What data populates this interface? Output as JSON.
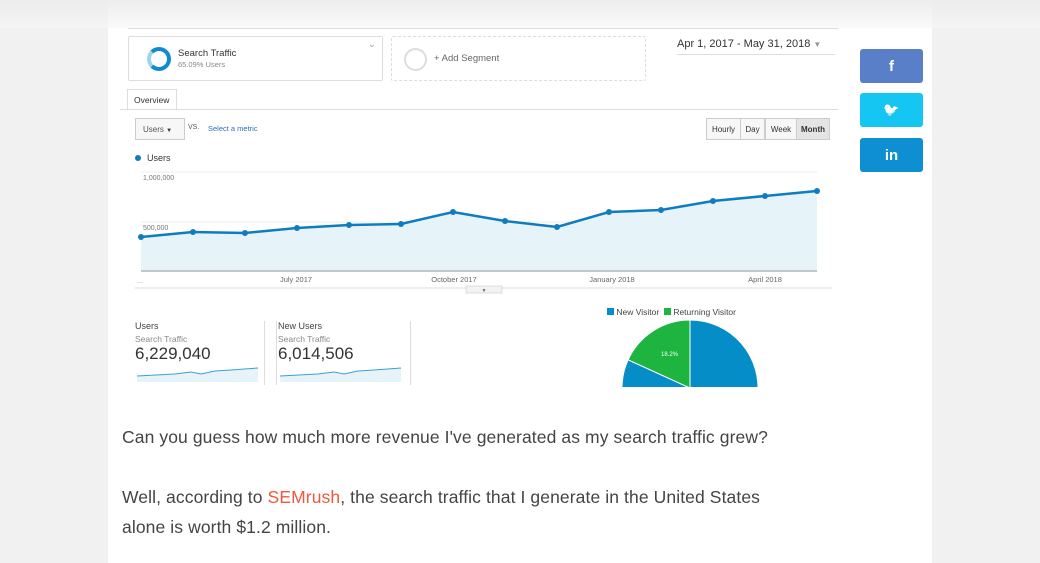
{
  "segments": {
    "active_name": "Search Traffic",
    "active_sub": "65.09% Users",
    "add_label": "+ Add Segment"
  },
  "date_range": "Apr 1, 2017 - May 31, 2018",
  "tab": "Overview",
  "metric_select": "Users",
  "vs": "VS.",
  "select_metric": "Select a metric",
  "granularity": [
    "Hourly",
    "Day",
    "Week",
    "Month"
  ],
  "legend_label": "Users",
  "chart_data": {
    "type": "area",
    "series": [
      {
        "name": "Users",
        "values": [
          350000,
          400000,
          390000,
          440000,
          470000,
          480000,
          600000,
          510000,
          450000,
          600000,
          620000,
          710000,
          760000,
          810000
        ]
      }
    ],
    "yticks": [
      "1,000,000",
      "500,000"
    ],
    "xticks": [
      "July 2017",
      "October 2017",
      "January 2018",
      "April 2018"
    ],
    "ylim": [
      0,
      1000000
    ],
    "x_first_label": "..."
  },
  "scorecards": [
    {
      "title": "Users",
      "segment": "Search Traffic",
      "value": "6,229,040"
    },
    {
      "title": "New Users",
      "segment": "Search Traffic",
      "value": "6,014,506"
    }
  ],
  "pie": {
    "legend": [
      "New Visitor",
      "Returning Visitor"
    ],
    "values": [
      81.8,
      18.2
    ],
    "label": "18.2%",
    "colors": [
      "#058dc7",
      "#1db43f"
    ]
  },
  "share": {
    "facebook": "f",
    "twitter": "🐦",
    "linkedin": "in"
  },
  "article": {
    "p1": "Can you guess how much more revenue I've generated as my search traffic grew?",
    "p2_a": "Well, according to ",
    "p2_link": "SEMrush",
    "p2_b": ", the search traffic that I generate in the United States",
    "p2_c": "alone is worth $1.2 million."
  }
}
